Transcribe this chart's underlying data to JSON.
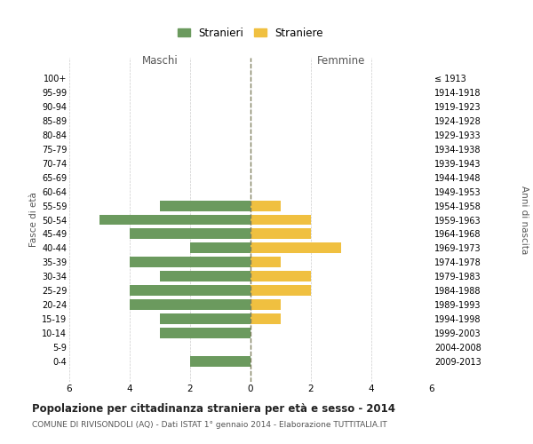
{
  "age_groups": [
    "100+",
    "95-99",
    "90-94",
    "85-89",
    "80-84",
    "75-79",
    "70-74",
    "65-69",
    "60-64",
    "55-59",
    "50-54",
    "45-49",
    "40-44",
    "35-39",
    "30-34",
    "25-29",
    "20-24",
    "15-19",
    "10-14",
    "5-9",
    "0-4"
  ],
  "birth_years": [
    "≤ 1913",
    "1914-1918",
    "1919-1923",
    "1924-1928",
    "1929-1933",
    "1934-1938",
    "1939-1943",
    "1944-1948",
    "1949-1953",
    "1954-1958",
    "1959-1963",
    "1964-1968",
    "1969-1973",
    "1974-1978",
    "1979-1983",
    "1984-1988",
    "1989-1993",
    "1994-1998",
    "1999-2003",
    "2004-2008",
    "2009-2013"
  ],
  "males": [
    0,
    0,
    0,
    0,
    0,
    0,
    0,
    0,
    0,
    3,
    5,
    4,
    2,
    4,
    3,
    4,
    4,
    3,
    3,
    0,
    2
  ],
  "females": [
    0,
    0,
    0,
    0,
    0,
    0,
    0,
    0,
    0,
    1,
    2,
    2,
    3,
    1,
    2,
    2,
    1,
    1,
    0,
    0,
    0
  ],
  "male_color": "#6b9a5e",
  "female_color": "#f0c040",
  "title": "Popolazione per cittadinanza straniera per età e sesso - 2014",
  "subtitle": "COMUNE DI RIVISONDOLI (AQ) - Dati ISTAT 1° gennaio 2014 - Elaborazione TUTTITALIA.IT",
  "xlabel_left": "Maschi",
  "xlabel_right": "Femmine",
  "ylabel_left": "Fasce di età",
  "ylabel_right": "Anni di nascita",
  "legend_male": "Stranieri",
  "legend_female": "Straniere",
  "xlim": 6,
  "background_color": "#ffffff",
  "grid_color": "#cccccc",
  "bar_height": 0.75
}
